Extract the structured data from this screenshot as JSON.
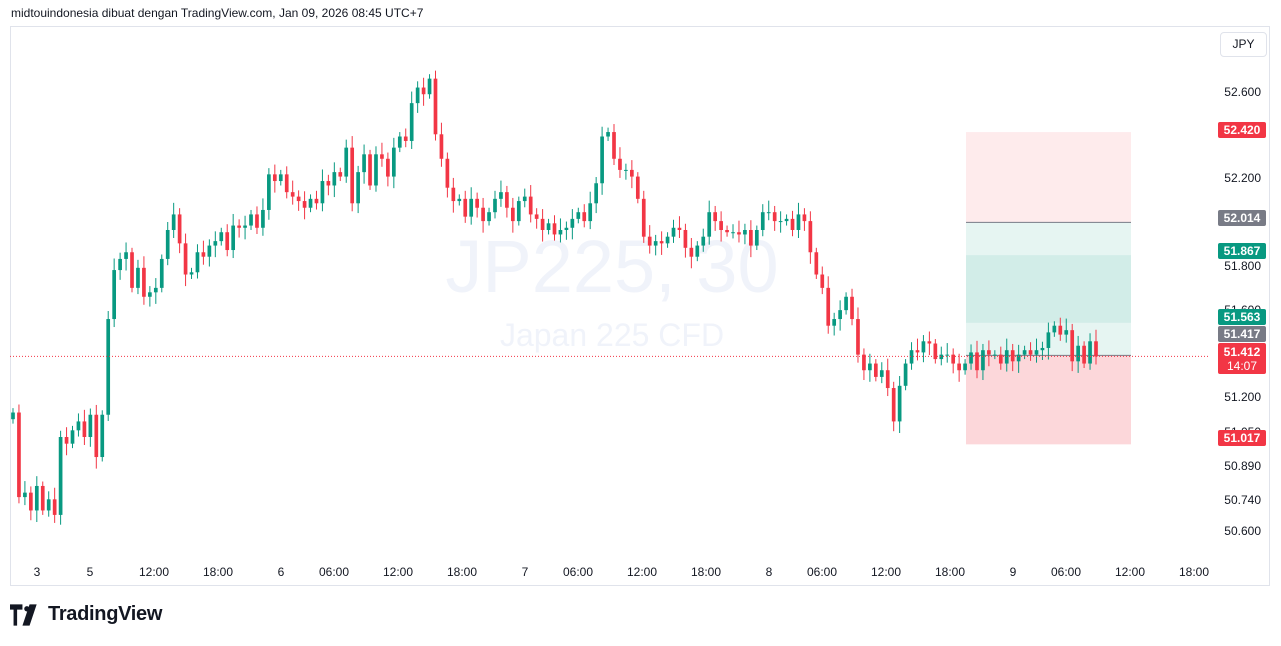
{
  "header": {
    "text": "midtouindonesia dibuat dengan TradingView.com, Jan 09, 2026 08:45 UTC+7"
  },
  "currency_button": {
    "label": "JPY"
  },
  "watermark": {
    "symbol": "JP225, 30",
    "description": "Japan 225 CFD"
  },
  "brand": {
    "name": "TradingView"
  },
  "colors": {
    "up": "#089981",
    "down": "#f23645",
    "gray": "#787b86",
    "stop_zone": "#f23645",
    "target_zone": "#089981"
  },
  "chart_data": {
    "type": "candlestick",
    "title": "",
    "y_ticks": [
      "52.600",
      "52.200",
      "51.800",
      "51.600",
      "51.200",
      "51.050",
      "50.890",
      "50.740",
      "50.600"
    ],
    "x_ticks": [
      "3",
      "5",
      "12:00",
      "18:00",
      "6",
      "06:00",
      "12:00",
      "18:00",
      "7",
      "06:00",
      "12:00",
      "18:00",
      "8",
      "06:00",
      "12:00",
      "18:00",
      "9",
      "06:00",
      "12:00",
      "18:00"
    ],
    "ylim": [
      50.5,
      52.8
    ],
    "last_price": {
      "value": "51.412",
      "countdown": "14:07"
    },
    "price_labels": [
      {
        "value": "52.420",
        "kind": "stop"
      },
      {
        "value": "52.014",
        "kind": "gray"
      },
      {
        "value": "51.867",
        "kind": "target"
      },
      {
        "value": "51.563",
        "kind": "target"
      },
      {
        "value": "51.417",
        "kind": "gray"
      },
      {
        "value": "51.017",
        "kind": "stop"
      }
    ],
    "position_tool": {
      "top": 52.42,
      "entry": 51.417,
      "bottom": 51.017,
      "inner_top": 51.867,
      "inner_bottom": 51.563,
      "line": 52.014
    },
    "closes": [
      51.16,
      50.78,
      50.8,
      50.72,
      50.83,
      50.72,
      50.77,
      50.7,
      51.05,
      51.02,
      51.08,
      51.12,
      51.05,
      51.15,
      50.96,
      51.15,
      51.58,
      51.8,
      51.85,
      51.88,
      51.72,
      51.81,
      51.68,
      51.7,
      51.72,
      51.85,
      51.98,
      52.05,
      51.92,
      51.78,
      51.79,
      51.88,
      51.86,
      51.91,
      51.93,
      51.97,
      51.89,
      52.0,
      51.99,
      52.0,
      52.05,
      51.99,
      52.07,
      52.23,
      52.2,
      52.23,
      52.15,
      52.13,
      52.11,
      52.08,
      52.12,
      52.1,
      52.2,
      52.18,
      52.24,
      52.22,
      52.35,
      52.1,
      52.24,
      52.32,
      52.18,
      52.32,
      52.3,
      52.22,
      52.35,
      52.4,
      52.38,
      52.55,
      52.62,
      52.59,
      52.66,
      52.41,
      52.3,
      52.17,
      52.11,
      52.12,
      52.04,
      52.12,
      52.08,
      52.02,
      52.06,
      52.12,
      52.15,
      52.08,
      52.02,
      52.11,
      52.13,
      52.05,
      52.03,
      51.98,
      52.01,
      51.96,
      51.98,
      51.99,
      52.03,
      52.06,
      52.02,
      52.1,
      52.19,
      52.4,
      52.42,
      52.3,
      52.25,
      52.25,
      52.22,
      52.12,
      51.95,
      51.91,
      51.93,
      51.92,
      51.95,
      51.99,
      51.98,
      51.9,
      51.86,
      51.91,
      51.95,
      52.06,
      52.02,
      51.98,
      51.97,
      51.97,
      51.96,
      51.98,
      51.91,
      51.98,
      52.06,
      52.06,
      52.02,
      52.02,
      52.03,
      51.98,
      52.05,
      52.02,
      51.88,
      51.78,
      51.72,
      51.55,
      51.58,
      51.62,
      51.68,
      51.58,
      51.42,
      51.35,
      51.38,
      51.32,
      51.35,
      51.27,
      51.12,
      51.28,
      51.38,
      51.44,
      51.43,
      51.48,
      51.47,
      51.4,
      51.42,
      51.42,
      51.38,
      51.35,
      51.38,
      51.43,
      51.35,
      51.44,
      51.42,
      51.42,
      51.38,
      51.44,
      51.39,
      51.42,
      51.44,
      51.42,
      51.44,
      51.45,
      51.52,
      51.55,
      51.51,
      51.53,
      51.39,
      51.46,
      51.38,
      51.48,
      51.412
    ]
  }
}
